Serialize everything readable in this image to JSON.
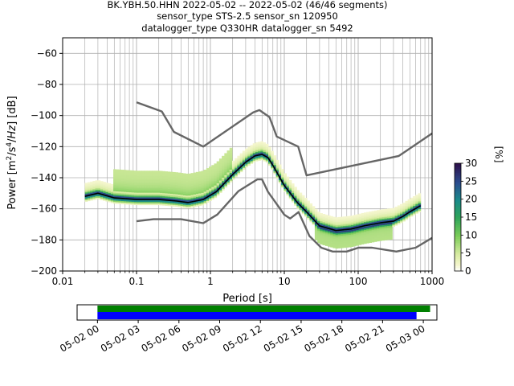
{
  "title_lines": [
    "BK.YBH.50.HHN   2022-05-02 -- 2022-05-02  (46/46 segments)",
    "sensor_type STS-2.5 sensor_sn 120950",
    "datalogger_type Q330HR datalogger_sn 5492"
  ],
  "chart_data": {
    "type": "heatmap",
    "xlabel": "Period [s]",
    "ylabel": "Power [m²/s⁴/Hz] [dB]",
    "xscale": "log",
    "xlim": [
      0.01,
      1000
    ],
    "ylim": [
      -200,
      -50
    ],
    "x_ticks": [
      0.01,
      0.1,
      1,
      10,
      100,
      1000
    ],
    "x_tick_labels": [
      "0.01",
      "0.1",
      "1",
      "10",
      "100",
      "1000"
    ],
    "y_ticks": [
      -200,
      -180,
      -160,
      -140,
      -120,
      -100,
      -80,
      -60
    ],
    "y_tick_labels": [
      "−200",
      "−180",
      "−160",
      "−140",
      "−120",
      "−100",
      "−80",
      "−60"
    ],
    "grid": true,
    "colorbar": {
      "label": "[%]",
      "range": [
        0,
        30
      ],
      "ticks": [
        0,
        5,
        10,
        15,
        20,
        25,
        30
      ],
      "tick_labels": [
        "0",
        "5",
        "10",
        "15",
        "20",
        "25",
        "30"
      ],
      "colormap": "pqlx-like (white-yellow-green-teal-purple)"
    },
    "noise_model_high": {
      "period": [
        0.1,
        0.22,
        0.32,
        0.8,
        3.8,
        4.6,
        6.3,
        7.9,
        15.4,
        20,
        354.8,
        1000
      ],
      "power": [
        -91.5,
        -97.4,
        -110.5,
        -120,
        -98,
        -96.5,
        -101,
        -113.5,
        -120,
        -138.5,
        -126,
        -111.5
      ]
    },
    "noise_model_low": {
      "period": [
        0.1,
        0.17,
        0.4,
        0.8,
        1.24,
        2.4,
        4.3,
        5,
        6,
        10,
        12,
        15.6,
        21.9,
        31.6,
        45,
        70,
        101,
        154,
        328,
        600,
        1000
      ],
      "power": [
        -168,
        -166.7,
        -166.7,
        -169.2,
        -163.7,
        -148.6,
        -141.1,
        -141.1,
        -149,
        -163.8,
        -166.2,
        -162.1,
        -177.5,
        -185,
        -187.5,
        -187.5,
        -185,
        -185,
        -187.5,
        -185,
        -178.7
      ]
    },
    "mean_psd": {
      "period": [
        0.02,
        0.03,
        0.05,
        0.1,
        0.2,
        0.35,
        0.5,
        0.8,
        1.2,
        2,
        3,
        4,
        5,
        6,
        7,
        10,
        15,
        20,
        30,
        50,
        80,
        120,
        200,
        300,
        400,
        500,
        700
      ],
      "power": [
        -152,
        -150,
        -153,
        -154,
        -154,
        -155,
        -156,
        -154,
        -149,
        -138,
        -130,
        -126,
        -125,
        -127,
        -132,
        -145,
        -156,
        -162,
        -171,
        -174,
        -173,
        -171,
        -169,
        -168,
        -165,
        -162,
        -158
      ]
    },
    "date_axis": {
      "tick_labels": [
        "05-02 00",
        "05-02 03",
        "05-02 06",
        "05-02 09",
        "05-02 12",
        "05-02 15",
        "05-02 18",
        "05-02 21",
        "05-03 00"
      ],
      "range_hours": [
        -1.5,
        25
      ],
      "bars": [
        {
          "color": "#008000",
          "start_hour": 0,
          "end_hour": 24.5
        },
        {
          "color": "#0000ff",
          "start_hour": 0,
          "end_hour": 23.5
        }
      ]
    }
  }
}
